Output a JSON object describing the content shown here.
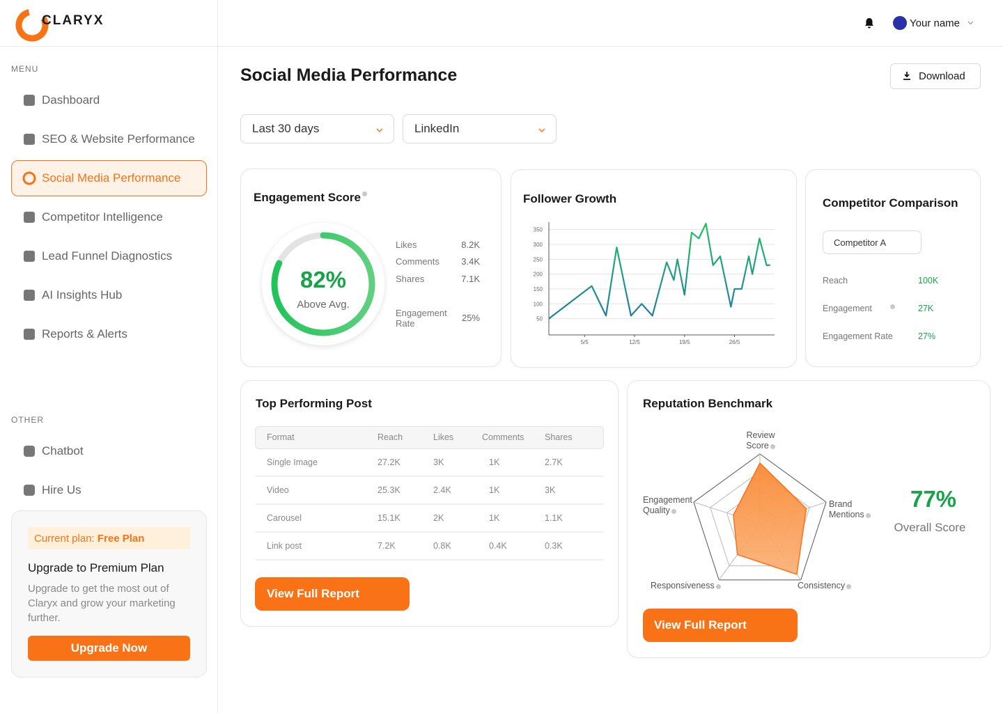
{
  "brand": "CLARYX",
  "header": {
    "user": "Your name"
  },
  "sidebar": {
    "menu_label": "MENU",
    "menu": [
      "Dashboard",
      "SEO & Website Performance",
      "Social Media Performance",
      "Competitor Intelligence",
      "Lead Funnel Diagnostics",
      "AI Insights Hub",
      "Reports & Alerts"
    ],
    "other_label": "OTHER",
    "other": [
      "Chatbot",
      "Hire Us"
    ]
  },
  "plan": {
    "current_label": "Current plan:",
    "current": "Free Plan",
    "title": "Upgrade to Premium Plan",
    "text": "Upgrade to get the most out of Claryx and grow your marketing further.",
    "button": "Upgrade Now"
  },
  "page": {
    "title": "Social Media Performance",
    "download": "Download",
    "filters": [
      "Last 30 days",
      "LinkedIn"
    ]
  },
  "engagement": {
    "type": "gauge",
    "title": "Engagement Score",
    "score": 82,
    "score_label": "82%",
    "status": "Above Avg.",
    "stats": [
      {
        "label": "Likes",
        "value": "8.2K"
      },
      {
        "label": "Comments",
        "value": "3.4K"
      },
      {
        "label": "Shares",
        "value": "7.1K"
      },
      {
        "label": "Engagement Rate",
        "value": "25%"
      }
    ]
  },
  "follower_growth": {
    "type": "line",
    "title": "Follower Growth",
    "x": [
      0,
      6,
      8,
      9.5,
      11.5,
      13,
      14.5,
      16.5,
      17.5,
      18,
      19,
      20,
      21,
      22,
      23,
      24,
      25.5,
      26,
      27,
      28,
      28.5,
      29.5,
      30.5,
      31
    ],
    "values": [
      50,
      160,
      60,
      290,
      60,
      100,
      60,
      240,
      180,
      250,
      130,
      340,
      320,
      370,
      230,
      260,
      90,
      150,
      150,
      260,
      200,
      320,
      230,
      230
    ],
    "xlim": [
      0,
      32
    ],
    "ylim": [
      0,
      375
    ],
    "yticks": [
      50,
      100,
      150,
      200,
      250,
      300,
      350
    ],
    "xticks": [
      {
        "value": 5,
        "label": "5/5"
      },
      {
        "value": 12,
        "label": "12/5"
      },
      {
        "value": 19,
        "label": "19/5"
      },
      {
        "value": 26,
        "label": "26/5"
      }
    ],
    "colors": [
      "#1f6fb0",
      "#1fc45a"
    ],
    "grid": true
  },
  "competitor": {
    "title": "Competitor Comparison",
    "selector": "Competitor A",
    "metrics": [
      {
        "label": "Reach",
        "value": "100K"
      },
      {
        "label": "Engagement",
        "value": "27K"
      },
      {
        "label": "Engagement Rate",
        "value": "27%"
      }
    ]
  },
  "top_post": {
    "title": "Top Performing Post",
    "columns": [
      "Format",
      "Reach",
      "Likes",
      "Comments",
      "Shares"
    ],
    "rows": [
      [
        "Single Image",
        "27.2K",
        "3K",
        "1K",
        "2.7K"
      ],
      [
        "Video",
        "25.3K",
        "2.4K",
        "1K",
        "3K"
      ],
      [
        "Carousel",
        "15.1K",
        "2K",
        "1K",
        "1.1K"
      ],
      [
        "Link post",
        "7.2K",
        "0.8K",
        "0.4K",
        "0.3K"
      ]
    ],
    "button": "View Full Report"
  },
  "reputation": {
    "type": "radar",
    "title": "Reputation Benchmark",
    "axes": [
      "Review Score",
      "Brand Mentions",
      "Consistency",
      "Responsiveness",
      "Engagement Quality"
    ],
    "values": [
      87,
      70,
      90,
      55,
      40
    ],
    "rlim": [
      0,
      100
    ],
    "color": "#f97316",
    "overall": "77%",
    "overall_text": "Overall Score",
    "button": "View Full Report"
  }
}
